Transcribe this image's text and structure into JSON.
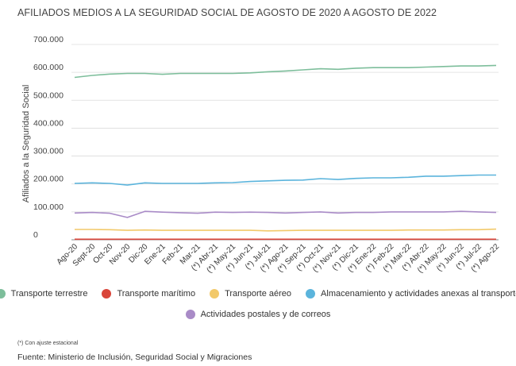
{
  "chart_data": {
    "type": "line",
    "title": "AFILIADOS MEDIOS A LA SEGURIDAD SOCIAL DE AGOSTO DE 2020 A AGOSTO DE 2022",
    "xlabel": "",
    "ylabel": "Afiliados a la Seguridad Social",
    "ylim": [
      0,
      700000
    ],
    "y_ticks": [
      0,
      100000,
      200000,
      300000,
      400000,
      500000,
      600000,
      700000
    ],
    "y_tick_labels": [
      "0",
      "100.000",
      "200.000",
      "300.000",
      "400.000",
      "500.000",
      "600.000",
      "700.000"
    ],
    "grid": true,
    "legend_position": "bottom",
    "categories": [
      "Ago-20",
      "Sept-20",
      "Oct-20",
      "Nov-20",
      "Dic-20",
      "Ene-21",
      "Feb-21",
      "Mar-21",
      "(*) Abr-21",
      "(*) May-21",
      "(*) Jun-21",
      "(*) Jul-21",
      "(*) Ago-21",
      "(*) Sep-21",
      "(*) Oct-21",
      "(*) Nov-21",
      "(*) Dic-21",
      "(*) Ene-22",
      "(*) Feb-22",
      "(*) Mar-22",
      "(*) Abr-22",
      "(*) May-22",
      "(*) Jun-22",
      "(*) Jul-22",
      "(*) Ago-22"
    ],
    "series": [
      {
        "name": "Transporte terrestre",
        "color": "#7dbe9b",
        "values": [
          582000,
          589000,
          594000,
          596000,
          596000,
          593000,
          596000,
          596000,
          596000,
          596000,
          598000,
          602000,
          605000,
          609000,
          613000,
          611000,
          615000,
          617000,
          617000,
          617000,
          619000,
          621000,
          623000,
          623000,
          625000
        ]
      },
      {
        "name": "Transporte marítimo",
        "color": "#d9453a",
        "values": [
          2000,
          2000,
          2000,
          2000,
          2000,
          2000,
          2000,
          2000,
          2000,
          2000,
          2000,
          2000,
          2000,
          2000,
          2000,
          2000,
          2000,
          2000,
          2000,
          2000,
          2000,
          2000,
          2000,
          2000,
          2000
        ]
      },
      {
        "name": "Transporte aéreo",
        "color": "#f2c96a",
        "values": [
          37000,
          37000,
          36000,
          34000,
          35000,
          34000,
          34000,
          34000,
          34000,
          34000,
          34000,
          32000,
          33000,
          34000,
          34000,
          34000,
          34000,
          34000,
          34000,
          35000,
          35000,
          35000,
          36000,
          36000,
          38000
        ]
      },
      {
        "name": "Almacenamiento y actividades anexas al transporte",
        "color": "#5bb4dc",
        "values": [
          202000,
          204000,
          202000,
          196000,
          204000,
          202000,
          202000,
          202000,
          204000,
          205000,
          209000,
          211000,
          213000,
          214000,
          219000,
          216000,
          220000,
          222000,
          222000,
          224000,
          228000,
          228000,
          230000,
          232000,
          232000
        ]
      },
      {
        "name": "Actividades postales y de correos",
        "color": "#a98bc7",
        "values": [
          96000,
          98000,
          95000,
          80000,
          102000,
          99000,
          97000,
          95000,
          99000,
          98000,
          99000,
          98000,
          96000,
          98000,
          100000,
          96000,
          98000,
          98000,
          100000,
          100000,
          100000,
          100000,
          102000,
          100000,
          98000
        ]
      }
    ]
  },
  "footnote": "(*) Con ajuste estacional",
  "source": "Fuente: Ministerio de Inclusión, Seguridad Social y Migraciones"
}
